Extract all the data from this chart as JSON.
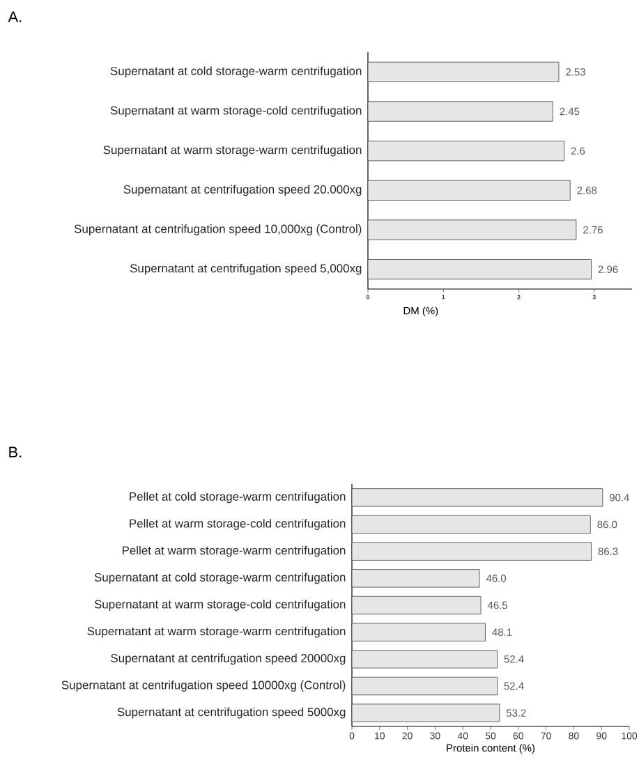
{
  "chart_data": [
    {
      "type": "bar",
      "title": "A.",
      "orientation": "horizontal",
      "xlabel": "DM (%)",
      "categories": [
        "Supernatant at cold storage-warm centrifugation",
        "Supernatant at warm storage-cold centrifugation",
        "Supernatant at warm storage-warm centrifugation",
        "Supernatant at centrifugation speed 20.000xg",
        "Supernatant at centrifugation speed 10,000xg (Control)",
        "Supernatant at centrifugation speed 5,000xg"
      ],
      "values": [
        2.53,
        2.45,
        2.6,
        2.68,
        2.76,
        2.96
      ],
      "value_labels": [
        "2.53",
        "2.45",
        "2.6",
        "2.68",
        "2.76",
        "2.96"
      ],
      "color": "#e6e6e6",
      "xlim": [
        0,
        3.5
      ],
      "xticks": [
        0,
        1,
        2,
        3
      ]
    },
    {
      "type": "bar",
      "title": "B.",
      "orientation": "horizontal",
      "xlabel": "Protein content (%)",
      "categories": [
        "Pellet at cold storage-warm centrifugation",
        "Pellet at warm storage-cold centrifugation",
        "Pellet  at warm storage-warm centrifugation",
        "Supernatant at cold storage-warm centrifugation",
        "Supernatant at warm storage-cold centrifugation",
        "Supernatant at warm storage-warm centrifugation",
        "Supernatant at centrifugation speed  20000xg",
        "Supernatant at centrifugation speed  10000xg (Control)",
        "Supernatant at centrifugation speed 5000xg"
      ],
      "values": [
        90.4,
        86.0,
        86.3,
        46.0,
        46.5,
        48.1,
        52.4,
        52.4,
        53.2
      ],
      "value_labels": [
        "90.4",
        "86.0",
        "86.3",
        "46.0",
        "46.5",
        "48.1",
        "52.4",
        "52.4",
        "53.2"
      ],
      "color": "#e6e6e6",
      "xlim": [
        0,
        100
      ],
      "xticks": [
        0,
        10,
        20,
        30,
        40,
        50,
        60,
        70,
        80,
        90,
        100
      ]
    }
  ]
}
